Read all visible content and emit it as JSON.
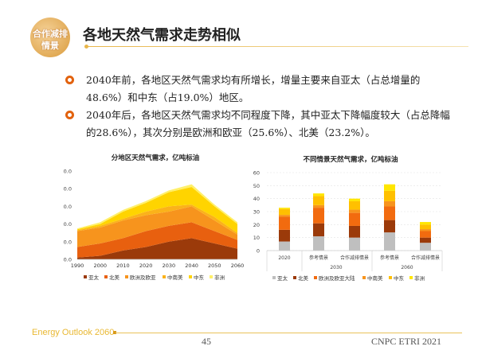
{
  "logo": {
    "line1": "合作减排",
    "line2": "情景"
  },
  "title": "各地天然气需求走势相似",
  "bullets": [
    "2040年前，各地区天然气需求均有所增长，增量主要来自亚太（占总增量的48.6%）和中东（占19.0%）地区。",
    "2040年后，各地区天然气需求均不同程度下降，其中亚太下降幅度较大（占总降幅的28.6%），其次分别是欧洲和欧亚（25.6%）、北美（23.2%）。"
  ],
  "footer": {
    "left": "Energy Outlook 2060",
    "page": "45",
    "right": "CNPC ETRI 2021"
  },
  "chart_data": [
    {
      "type": "area",
      "stacked": true,
      "title": "分地区天然气需求，亿吨标油",
      "x": [
        1990,
        2000,
        2010,
        2020,
        2030,
        2040,
        2050,
        2060
      ],
      "yticks": [
        "0.0",
        "10.0",
        "20.0",
        "30.0",
        "40.0",
        "50.0"
      ],
      "ylim": [
        0,
        50
      ],
      "legend_position": "bottom",
      "series": [
        {
          "name": "亚太",
          "color": "#9b3a0a",
          "values": [
            1,
            2,
            5,
            7,
            10,
            12,
            9,
            6
          ]
        },
        {
          "name": "北美",
          "color": "#e8600f",
          "values": [
            6,
            7,
            7,
            9,
            9,
            9,
            7,
            5
          ]
        },
        {
          "name": "欧洲及欧亚",
          "color": "#f7941d",
          "values": [
            9,
            9,
            10,
            9,
            8,
            9,
            6,
            3
          ]
        },
        {
          "name": "中南美",
          "color": "#fbb21a",
          "values": [
            0.5,
            1,
            1,
            2,
            3,
            1,
            2,
            1
          ]
        },
        {
          "name": "中东",
          "color": "#ffd400",
          "values": [
            0.5,
            1,
            4,
            5,
            8,
            10,
            6,
            5
          ]
        },
        {
          "name": "非洲",
          "color": "#fff06a",
          "values": [
            0.5,
            1,
            1,
            1,
            1,
            1.5,
            1,
            1
          ]
        }
      ]
    },
    {
      "type": "bar",
      "stacked": true,
      "title": "不同情景天然气需求，亿吨标油",
      "categories": [
        "2020",
        "参考情景",
        "合作减排情景",
        "参考情景",
        "合作减排情景"
      ],
      "groups": [
        "2030",
        "2060"
      ],
      "yticks": [
        "0",
        "10",
        "20",
        "30",
        "40",
        "50",
        "60"
      ],
      "ylim": [
        0,
        60
      ],
      "legend_position": "bottom",
      "series": [
        {
          "name": "亚太",
          "color": "#bfbfbf",
          "values": [
            7,
            11,
            10,
            14,
            6
          ]
        },
        {
          "name": "北美",
          "color": "#9b3a0a",
          "values": [
            9,
            10,
            9,
            9.5,
            4
          ]
        },
        {
          "name": "欧洲及欧亚大陆",
          "color": "#f26b0f",
          "values": [
            10,
            12,
            10,
            10.5,
            5
          ]
        },
        {
          "name": "中南美",
          "color": "#f7941d",
          "values": [
            1.5,
            2,
            2.5,
            4,
            1.5
          ]
        },
        {
          "name": "中东",
          "color": "#ffc000",
          "values": [
            4.5,
            7,
            6.5,
            8,
            3.5
          ]
        },
        {
          "name": "非洲",
          "color": "#ffe600",
          "values": [
            1,
            2,
            2,
            5,
            2
          ]
        }
      ]
    }
  ]
}
